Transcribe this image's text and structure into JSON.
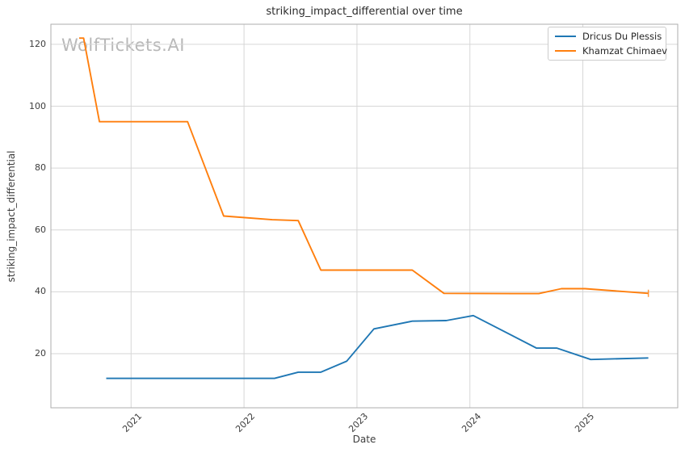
{
  "watermark": "WolfTickets.AI",
  "colors": {
    "grid": "#d6d6d6",
    "plot_border": "#aeaeae",
    "title_text": "#2b2b2b",
    "tick_text": "#3d3d3d",
    "watermark_text": "#b8b8b8",
    "series_blue": "#1f77b4",
    "series_orange": "#ff7f0e"
  },
  "chart_data": {
    "type": "line",
    "title": "striking_impact_differential over time",
    "xlabel": "Date",
    "ylabel": "striking_impact_differential",
    "xlim": [
      2020.29,
      2025.84
    ],
    "ylim": [
      2.5,
      126.5
    ],
    "xticks": [
      2021,
      2022,
      2023,
      2024,
      2025
    ],
    "xtick_rotation": 45,
    "yticks": [
      20,
      40,
      60,
      80,
      100,
      120
    ],
    "grid": true,
    "legend_position": "upper right",
    "series": [
      {
        "name": "Dricus Du Plessis",
        "color": "#1f77b4",
        "end_tick": false,
        "x": [
          2020.78,
          2022.27,
          2022.48,
          2022.68,
          2022.91,
          2023.15,
          2023.49,
          2023.79,
          2024.03,
          2024.59,
          2024.77,
          2025.07,
          2025.58
        ],
        "y": [
          12,
          12,
          14,
          14,
          17.6,
          28,
          30.5,
          30.7,
          32.3,
          21.8,
          21.8,
          18.1,
          18.6
        ]
      },
      {
        "name": "Khamzat Chimaev",
        "color": "#ff7f0e",
        "end_tick": true,
        "x": [
          2020.54,
          2020.58,
          2020.72,
          2021.5,
          2021.82,
          2022.25,
          2022.48,
          2022.68,
          2023.49,
          2023.77,
          2024.61,
          2024.81,
          2025.02,
          2025.58
        ],
        "y": [
          122,
          122,
          95,
          95,
          64.5,
          63.3,
          63,
          47,
          47,
          39.5,
          39.4,
          41,
          41,
          39.5
        ]
      }
    ]
  }
}
